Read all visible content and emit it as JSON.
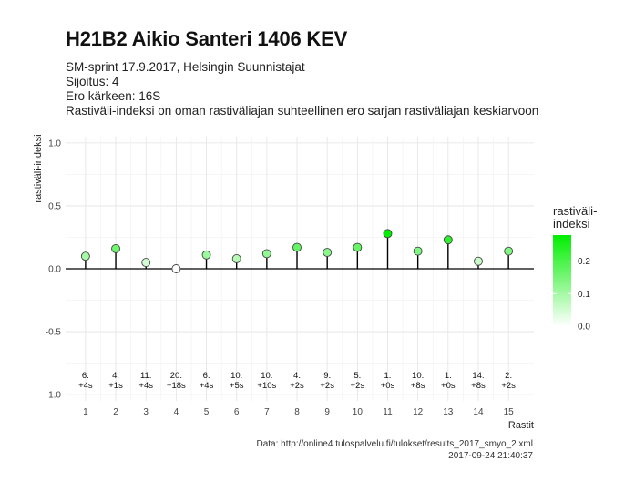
{
  "chart_data": {
    "type": "lollipop",
    "title": "H21B2 Aikio Santeri 1406 KEV",
    "subtitle_lines": [
      "SM-sprint 17.9.2017, Helsingin Suunnistajat",
      "Sijoitus: 4",
      "Ero kärkeen: 16S",
      "Rastiväli-indeksi on oman rastiväliajan suhteellinen ero sarjan rastiväliajan keskiarvoon"
    ],
    "xlabel": "Rastit",
    "ylabel": "rastiväli-indeksi",
    "ylim": [
      -1.05,
      1.05
    ],
    "y_ticks": [
      "1.0",
      "0.5",
      "0.0",
      "-0.5",
      "-1.0"
    ],
    "x": [
      "1",
      "2",
      "3",
      "4",
      "5",
      "6",
      "7",
      "8",
      "9",
      "10",
      "11",
      "12",
      "13",
      "14",
      "15"
    ],
    "values": [
      0.1,
      0.16,
      0.05,
      0.0,
      0.11,
      0.08,
      0.12,
      0.17,
      0.13,
      0.17,
      0.28,
      0.14,
      0.23,
      0.06,
      0.14
    ],
    "rank_labels": [
      "6.",
      "4.",
      "11.",
      "20.",
      "6.",
      "10.",
      "10.",
      "4.",
      "9.",
      "5.",
      "1.",
      "10.",
      "1.",
      "14.",
      "2."
    ],
    "diff_labels": [
      "+4s",
      "+1s",
      "+4s",
      "+18s",
      "+4s",
      "+5s",
      "+10s",
      "+2s",
      "+2s",
      "+2s",
      "+0s",
      "+8s",
      "+0s",
      "+8s",
      "+2s"
    ],
    "legend": {
      "title": "rastiväli-\nindeksi",
      "ticks": [
        "0.2",
        "0.1",
        "0.0"
      ],
      "color_low": "#ffffff",
      "color_high": "#00ee00",
      "range": [
        0,
        0.28
      ]
    },
    "caption_lines": [
      "Data: http://online4.tulospalvelu.fi/tulokset/results_2017_smyo_2.xml",
      "2017-09-24 21:40:37"
    ],
    "grid": true
  }
}
